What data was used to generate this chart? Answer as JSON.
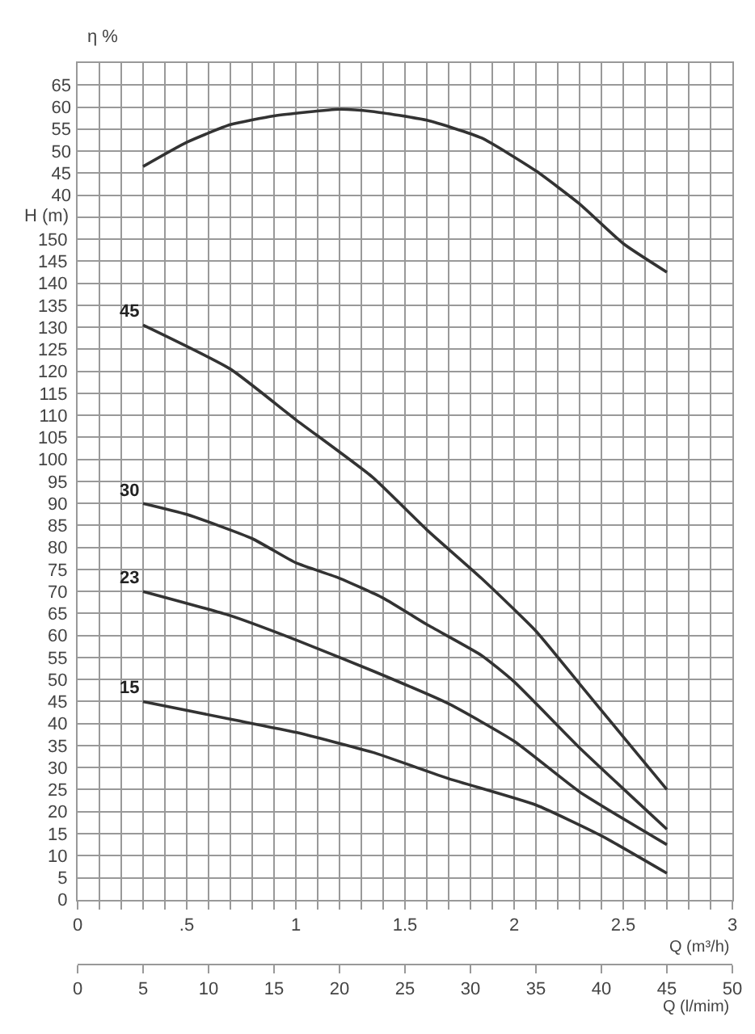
{
  "chart_data": {
    "type": "line",
    "xlabel": "Q (m³/h)",
    "ylabel": "H (m)",
    "y2label": "η %",
    "x2label": "Q (l/mim)",
    "xlim": [
      0,
      3
    ],
    "xticks": [
      0,
      {
        "value": 0.1,
        "label": null
      },
      {
        "value": 0.2,
        "label": null
      },
      {
        "value": 0.3,
        "label": null
      },
      {
        "value": 0.4,
        "label": null
      },
      {
        "value": 0.5,
        "label": ".5"
      },
      {
        "value": 0.6,
        "label": null
      },
      {
        "value": 0.7,
        "label": null
      },
      {
        "value": 0.8,
        "label": null
      },
      {
        "value": 0.9,
        "label": null
      },
      1,
      {
        "value": 1.1,
        "label": null
      },
      {
        "value": 1.2,
        "label": null
      },
      {
        "value": 1.3,
        "label": null
      },
      {
        "value": 1.4,
        "label": null
      },
      1.5,
      {
        "value": 1.6,
        "label": null
      },
      {
        "value": 1.7,
        "label": null
      },
      {
        "value": 1.8,
        "label": null
      },
      {
        "value": 1.9,
        "label": null
      },
      2,
      {
        "value": 2.1,
        "label": null
      },
      {
        "value": 2.2,
        "label": null
      },
      {
        "value": 2.3,
        "label": null
      },
      {
        "value": 2.4,
        "label": null
      },
      2.5,
      {
        "value": 2.6,
        "label": null
      },
      {
        "value": 2.7,
        "label": null
      },
      {
        "value": 2.8,
        "label": null
      },
      {
        "value": 2.9,
        "label": null
      },
      3
    ],
    "x2lim": [
      0,
      50
    ],
    "x2ticks": [
      0,
      5,
      10,
      15,
      20,
      25,
      30,
      35,
      40,
      45,
      50
    ],
    "ylim": [
      0,
      190
    ],
    "yticks": [
      0,
      5,
      10,
      15,
      20,
      25,
      30,
      35,
      40,
      45,
      50,
      55,
      60,
      65,
      70,
      75,
      80,
      85,
      90,
      95,
      100,
      105,
      110,
      115,
      120,
      125,
      130,
      135,
      140,
      145,
      150,
      {
        "value": 155,
        "label": null
      }
    ],
    "y2lim": [
      -120,
      70
    ],
    "y2ticks": [
      40,
      45,
      50,
      55,
      60,
      65
    ],
    "grid": true,
    "legend": false,
    "marker": "none",
    "line_style": "solid",
    "series": [
      {
        "axis": "y2",
        "color": "#333333",
        "x": [
          0.3,
          0.5,
          0.7,
          0.9,
          1.2,
          1.35,
          1.6,
          1.85,
          2.1,
          2.3,
          2.5,
          2.7
        ],
        "values": [
          46.5,
          52,
          56,
          58,
          59.5,
          59,
          57,
          53,
          45.5,
          38,
          29,
          22.5
        ]
      },
      {
        "name": "45",
        "color": "#333333",
        "x": [
          0.3,
          0.7,
          1.0,
          1.35,
          1.6,
          1.85,
          2.1,
          2.3,
          2.5,
          2.7
        ],
        "values": [
          130.5,
          120.5,
          109,
          96,
          84,
          73,
          61,
          49,
          37,
          25
        ]
      },
      {
        "name": "30",
        "color": "#333333",
        "x": [
          0.3,
          0.5,
          0.8,
          1.0,
          1.2,
          1.4,
          1.6,
          1.85,
          2.0,
          2.3,
          2.7
        ],
        "values": [
          90,
          87.5,
          82,
          76.5,
          73,
          68.5,
          62.5,
          55.5,
          49.5,
          34.5,
          16
        ]
      },
      {
        "name": "23",
        "color": "#333333",
        "x": [
          0.3,
          0.7,
          1.0,
          1.35,
          1.7,
          2.0,
          2.3,
          2.7
        ],
        "values": [
          70,
          64.5,
          59,
          52,
          44.5,
          36,
          24.5,
          12.5
        ]
      },
      {
        "name": "15",
        "color": "#333333",
        "x": [
          0.3,
          0.7,
          1.0,
          1.35,
          1.7,
          2.1,
          2.4,
          2.7
        ],
        "values": [
          45,
          41,
          38,
          33.5,
          27.5,
          21.5,
          14.5,
          6
        ]
      }
    ]
  }
}
